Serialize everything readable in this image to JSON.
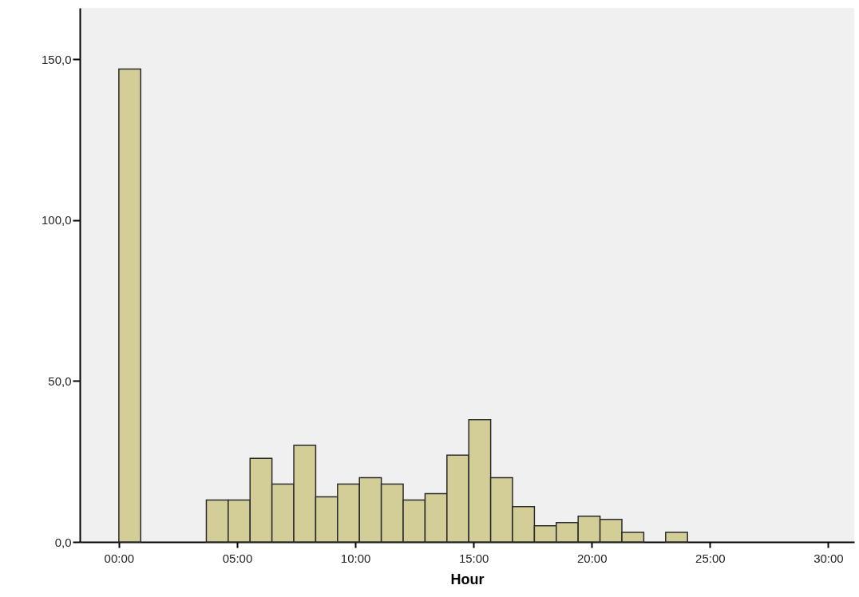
{
  "chart_data": {
    "type": "histogram",
    "xlabel": "Hour",
    "color": "#d3ce97",
    "bins": [
      0,
      0.925,
      1.85,
      2.775,
      3.7,
      4.625,
      5.55,
      6.475,
      7.4,
      8.325,
      9.25,
      10.175,
      11.1,
      12.025,
      12.95,
      13.875,
      14.8,
      15.725,
      16.65,
      17.575,
      18.5,
      19.425,
      20.35,
      21.275,
      22.2,
      23.125,
      24.05
    ],
    "values": [
      147,
      0,
      0,
      0,
      13,
      13,
      26,
      18,
      30,
      14,
      18,
      20,
      18,
      13,
      15,
      27,
      38,
      20,
      11,
      5,
      6,
      8,
      7,
      3,
      0,
      3
    ],
    "xlim": [
      -1.65,
      31.1
    ],
    "ylim": [
      0,
      166
    ],
    "xticks": [
      {
        "value": 0,
        "label": "00:00"
      },
      {
        "value": 5,
        "label": "05:00"
      },
      {
        "value": 10,
        "label": "10:00"
      },
      {
        "value": 15,
        "label": "15:00"
      },
      {
        "value": 20,
        "label": "20:00"
      },
      {
        "value": 25,
        "label": "25:00"
      },
      {
        "value": 30,
        "label": "30:00"
      }
    ],
    "yticks": [
      {
        "value": 0,
        "label": "0,0"
      },
      {
        "value": 50,
        "label": "50,0"
      },
      {
        "value": 100,
        "label": "100,0"
      },
      {
        "value": 150,
        "label": "150,0"
      }
    ],
    "grid": false
  }
}
